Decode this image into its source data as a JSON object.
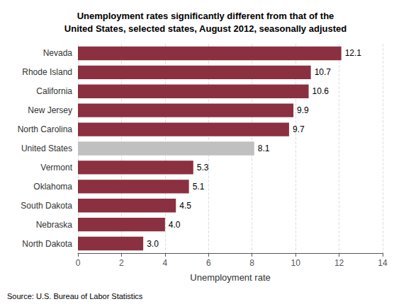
{
  "chart_data": {
    "type": "bar",
    "orientation": "horizontal",
    "title": "Unemployment rates significantly different from that of the\nUnited States, selected states, August 2012, seasonally adjusted",
    "xlabel": "Unemployment rate",
    "categories": [
      "Nevada",
      "Rhode Island",
      "California",
      "New Jersey",
      "North Carolina",
      "United States",
      "Vermont",
      "Oklahoma",
      "South Dakota",
      "Nebraska",
      "North Dakota"
    ],
    "values": [
      12.1,
      10.7,
      10.6,
      9.9,
      9.7,
      8.1,
      5.3,
      5.1,
      4.5,
      4.0,
      3.0
    ],
    "value_labels": [
      "12.1",
      "10.7",
      "10.6",
      "9.9",
      "9.7",
      "8.1",
      "5.3",
      "5.1",
      "4.5",
      "4.0",
      "3.0"
    ],
    "colors": [
      "#8B3040",
      "#8B3040",
      "#8B3040",
      "#8B3040",
      "#8B3040",
      "#C0C0C0",
      "#8B3040",
      "#8B3040",
      "#8B3040",
      "#8B3040",
      "#8B3040"
    ],
    "xlim": [
      0,
      14
    ],
    "xticks": [
      0,
      2,
      4,
      6,
      8,
      10,
      12,
      14
    ],
    "grid": true,
    "data_labels": true,
    "annotations": [
      "Source: U.S. Bureau of Labor Statistics"
    ]
  }
}
